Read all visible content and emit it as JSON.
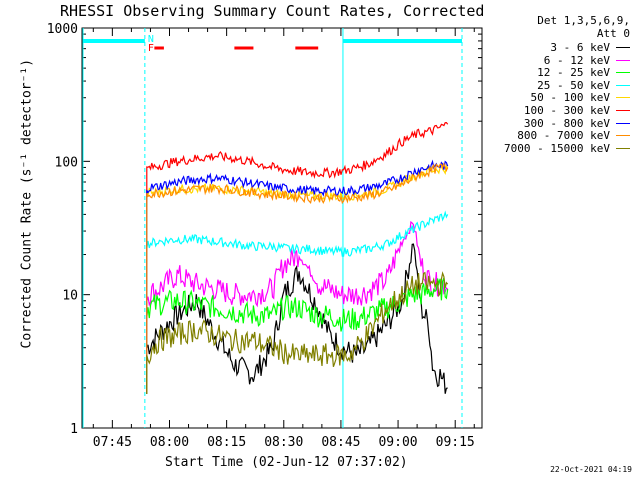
{
  "chart_data": {
    "type": "line",
    "title": "RHESSI Observing Summary Count Rates, Corrected",
    "xlabel": "Start Time (02-Jun-12 07:37:02)",
    "ylabel": "Corrected Count Rate (s⁻¹ detector⁻¹)",
    "yscale": "log",
    "ylim": [
      1,
      1000
    ],
    "xlim_minutes_from_start": [
      0,
      105
    ],
    "x_ticks": [
      "07:45",
      "08:00",
      "08:15",
      "08:30",
      "08:45",
      "09:00",
      "09:15"
    ],
    "y_ticks": [
      "1",
      "10",
      "100",
      "1000"
    ],
    "legend_header": [
      "Det 1,3,5,6,9,",
      "Att 0"
    ],
    "legend_placement": "right, outside plot",
    "flag_labels": [
      "N",
      "F"
    ],
    "timestamp": "22-Oct-2021 04:19",
    "series": [
      {
        "name": "3 - 6 keV",
        "color": "#000000",
        "t": [
          17,
          20,
          25,
          30,
          35,
          40,
          45,
          50,
          53,
          57,
          62,
          65,
          68,
          72,
          75,
          80,
          84,
          87,
          89,
          91,
          92,
          93,
          94,
          95,
          96
        ],
        "y": [
          4,
          5,
          7,
          9,
          5,
          3,
          2.5,
          4,
          10,
          15,
          8,
          5,
          4,
          3.5,
          4,
          6,
          9,
          25,
          8,
          6,
          3,
          2.5,
          2.5,
          2.2,
          2
        ]
      },
      {
        "name": "6 - 12 keV",
        "color": "#ff00ff",
        "t": [
          17,
          20,
          25,
          30,
          35,
          40,
          45,
          50,
          53,
          57,
          62,
          65,
          68,
          72,
          75,
          80,
          84,
          87,
          89,
          91,
          92,
          93,
          94,
          95,
          96
        ],
        "y": [
          10,
          11,
          14,
          12,
          11,
          10,
          10,
          11,
          17,
          20,
          12,
          11,
          10,
          10,
          10.5,
          13,
          25,
          35,
          17,
          13,
          12,
          12,
          12,
          12,
          11
        ]
      },
      {
        "name": "12 - 25 keV",
        "color": "#00ff00",
        "t": [
          17,
          20,
          25,
          30,
          35,
          40,
          45,
          50,
          53,
          57,
          62,
          65,
          68,
          72,
          75,
          80,
          84,
          87,
          89,
          91,
          92,
          93,
          94,
          95,
          96
        ],
        "y": [
          8,
          8.5,
          9,
          8.5,
          8,
          7.5,
          7,
          7,
          8,
          8,
          7,
          7,
          6.5,
          6.5,
          7,
          8,
          9,
          10,
          10,
          10.5,
          11,
          11,
          11,
          11,
          11
        ]
      },
      {
        "name": "25 - 50 keV",
        "color": "#00ffff",
        "t": [
          17,
          20,
          25,
          30,
          35,
          40,
          45,
          50,
          55,
          60,
          65,
          70,
          75,
          80,
          84,
          88,
          92,
          94,
          96
        ],
        "y": [
          24,
          25,
          26,
          26,
          25,
          24,
          23,
          23,
          22,
          22,
          21,
          21,
          22,
          24,
          28,
          32,
          36,
          38,
          40
        ]
      },
      {
        "name": "50 - 100 keV",
        "color": "#ffd700",
        "t": [
          17,
          20,
          25,
          30,
          35,
          40,
          45,
          50,
          55,
          60,
          65,
          70,
          75,
          80,
          84,
          88,
          92,
          94,
          96
        ],
        "y": [
          58,
          59,
          62,
          62,
          63,
          61,
          60,
          57,
          56,
          55,
          55,
          55,
          57,
          62,
          70,
          80,
          86,
          88,
          88
        ]
      },
      {
        "name": "100 - 300 keV",
        "color": "#ff0000",
        "t": [
          17,
          20,
          25,
          30,
          35,
          40,
          45,
          50,
          55,
          60,
          65,
          70,
          75,
          80,
          84,
          88,
          92,
          94,
          96
        ],
        "y": [
          88,
          93,
          100,
          105,
          110,
          105,
          98,
          90,
          85,
          82,
          82,
          86,
          95,
          115,
          140,
          160,
          170,
          180,
          190
        ]
      },
      {
        "name": "300 - 800 keV",
        "color": "#0000ff",
        "t": [
          17,
          20,
          25,
          30,
          35,
          40,
          45,
          50,
          55,
          60,
          65,
          70,
          75,
          80,
          84,
          88,
          92,
          94,
          96
        ],
        "y": [
          63,
          65,
          70,
          73,
          75,
          72,
          68,
          64,
          62,
          60,
          60,
          60,
          63,
          68,
          76,
          86,
          92,
          93,
          92
        ]
      },
      {
        "name": "800 - 7000 keV",
        "color": "#ff8c00",
        "t": [
          17,
          20,
          25,
          30,
          35,
          40,
          45,
          50,
          55,
          60,
          65,
          70,
          75,
          80,
          84,
          88,
          92,
          94,
          96
        ],
        "y": [
          57,
          58,
          60,
          62,
          63,
          61,
          58,
          56,
          55,
          53,
          53,
          53,
          55,
          60,
          67,
          78,
          86,
          90,
          90
        ]
      },
      {
        "name": "7000 - 15000 keV",
        "color": "#808000",
        "t": [
          17,
          20,
          25,
          30,
          35,
          40,
          45,
          50,
          55,
          60,
          65,
          70,
          75,
          80,
          84,
          86,
          88,
          90,
          92,
          94,
          96
        ],
        "y": [
          3.5,
          4.5,
          5,
          5.5,
          5,
          4.5,
          4.5,
          4,
          3.5,
          3.5,
          3.5,
          3.5,
          5,
          8,
          10,
          11,
          12,
          12,
          12,
          12,
          12
        ]
      }
    ]
  }
}
